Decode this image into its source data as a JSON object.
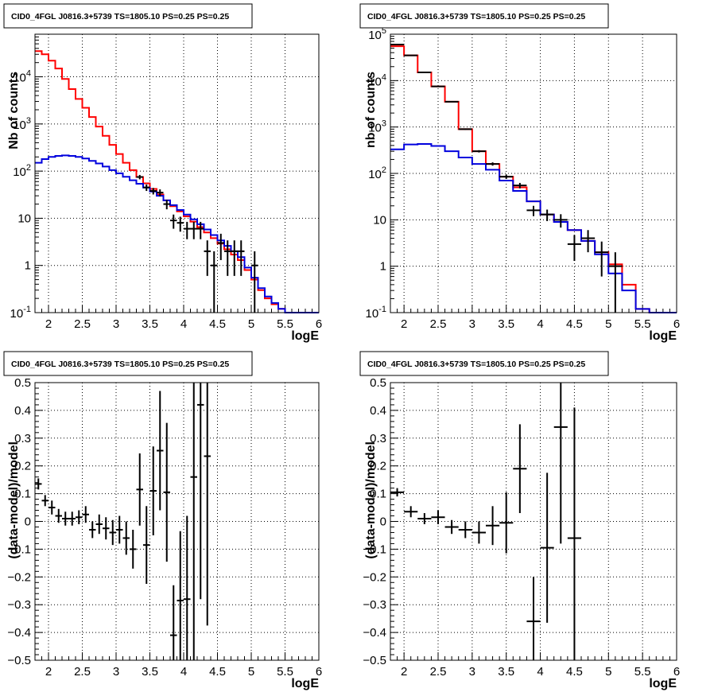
{
  "colors": {
    "data": "#000000",
    "model_total": "#ff0000",
    "model_bkg": "#0000dd",
    "grid": "#000000"
  },
  "chart_data": [
    {
      "type": "step-histogram",
      "title": "CID0_4FGL J0816.3+5739 TS=1805.10 PS=0.25 PS=0.25",
      "xlabel": "logE",
      "ylabel": "Nb of counts",
      "xlim": [
        1.8,
        6.0
      ],
      "ylim": [
        0.1,
        80000
      ],
      "yscale": "log",
      "grid": true,
      "xticks": [
        2,
        2.5,
        3,
        3.5,
        4,
        4.5,
        5,
        5.5,
        6
      ],
      "xtick_labels": [
        "2",
        "2.5",
        "3",
        "3.5",
        "4",
        "4.5",
        "5",
        "5.5",
        "6"
      ],
      "yticks": [
        0.1,
        1,
        10,
        100,
        1000,
        10000
      ],
      "ytick_labels": [
        "10^-1",
        "1",
        "10",
        "10^2",
        "10^3",
        "10^4"
      ],
      "edges": [
        1.8,
        1.9,
        2.0,
        2.1,
        2.2,
        2.3,
        2.4,
        2.5,
        2.6,
        2.7,
        2.8,
        2.9,
        3.0,
        3.1,
        3.2,
        3.3,
        3.4,
        3.5,
        3.6,
        3.7,
        3.8,
        3.9,
        4.0,
        4.1,
        4.2,
        4.3,
        4.4,
        4.5,
        4.6,
        4.7,
        4.8,
        4.9,
        5.0,
        5.1,
        5.2,
        5.3,
        5.4,
        5.5,
        5.6,
        5.7,
        5.8,
        5.9,
        6.0
      ],
      "series": [
        {
          "key": "total",
          "values": [
            35000,
            30000,
            22000,
            15000,
            9000,
            5500,
            3400,
            2200,
            1400,
            880,
            560,
            360,
            230,
            150,
            105,
            75,
            55,
            42,
            32,
            24,
            18,
            14,
            11,
            8.5,
            6.5,
            5,
            3.8,
            2.9,
            2.2,
            1.7,
            1.3,
            0.8,
            0.5,
            0.3,
            0.2,
            0.15,
            0.12,
            0.1,
            0.1,
            0.1,
            0.1,
            0.1
          ]
        },
        {
          "key": "bkg",
          "values": [
            150,
            180,
            200,
            210,
            215,
            210,
            200,
            185,
            165,
            145,
            125,
            105,
            90,
            76,
            64,
            54,
            45,
            37,
            30,
            24,
            19,
            15,
            12,
            9.5,
            7.5,
            5.8,
            4.4,
            3.4,
            2.6,
            2.0,
            1.5,
            0.9,
            0.55,
            0.33,
            0.22,
            0.16,
            0.12,
            0.1,
            0.1,
            0.1,
            0.1,
            0.1
          ]
        }
      ],
      "points": [
        {
          "x": 3.35,
          "y": 75,
          "xe": 0.05,
          "ylo": 8,
          "yhi": 8
        },
        {
          "x": 3.45,
          "y": 45,
          "xe": 0.05,
          "ylo": 7,
          "yhi": 7
        },
        {
          "x": 3.55,
          "y": 38,
          "xe": 0.05,
          "ylo": 6,
          "yhi": 6
        },
        {
          "x": 3.65,
          "y": 35,
          "xe": 0.05,
          "ylo": 6,
          "yhi": 6
        },
        {
          "x": 3.75,
          "y": 20,
          "xe": 0.05,
          "ylo": 4.5,
          "yhi": 4.5
        },
        {
          "x": 3.85,
          "y": 9,
          "xe": 0.05,
          "ylo": 3,
          "yhi": 3
        },
        {
          "x": 3.95,
          "y": 8,
          "xe": 0.05,
          "ylo": 2.8,
          "yhi": 2.8
        },
        {
          "x": 4.05,
          "y": 6,
          "xe": 0.05,
          "ylo": 2.4,
          "yhi": 2.4
        },
        {
          "x": 4.15,
          "y": 6,
          "xe": 0.05,
          "ylo": 2.4,
          "yhi": 2.4
        },
        {
          "x": 4.25,
          "y": 6,
          "xe": 0.05,
          "ylo": 2.4,
          "yhi": 2.4
        },
        {
          "x": 4.35,
          "y": 2,
          "xe": 0.05,
          "ylo": 1.4,
          "yhi": 1.4
        },
        {
          "x": 4.45,
          "y": 1,
          "xe": 0.05,
          "ylo": 0.99,
          "yhi": 1
        },
        {
          "x": 4.55,
          "y": 3,
          "xe": 0.05,
          "ylo": 1.7,
          "yhi": 1.7
        },
        {
          "x": 4.65,
          "y": 2,
          "xe": 0.05,
          "ylo": 1.4,
          "yhi": 1.4
        },
        {
          "x": 4.75,
          "y": 2,
          "xe": 0.05,
          "ylo": 1.4,
          "yhi": 1.4
        },
        {
          "x": 4.85,
          "y": 2,
          "xe": 0.05,
          "ylo": 1.4,
          "yhi": 1.4
        },
        {
          "x": 5.05,
          "y": 1,
          "xe": 0.05,
          "ylo": 0.99,
          "yhi": 1
        }
      ]
    },
    {
      "type": "step-histogram",
      "title": "CID0_4FGL J0816.3+5739 TS=1805.10 PS=0.25 PS=0.25",
      "xlabel": "logE",
      "ylabel": "nb of counts",
      "xlim": [
        1.8,
        6.0
      ],
      "ylim": [
        0.1,
        100000
      ],
      "yscale": "log",
      "grid": true,
      "xticks": [
        2,
        2.5,
        3,
        3.5,
        4,
        4.5,
        5,
        5.5,
        6
      ],
      "xtick_labels": [
        "2",
        "2.5",
        "3",
        "3.5",
        "4",
        "4.5",
        "5",
        "5.5",
        "6"
      ],
      "yticks": [
        0.1,
        1,
        10,
        100,
        1000,
        10000,
        100000
      ],
      "ytick_labels": [
        "10^-1",
        "1",
        "10",
        "10^2",
        "10^3",
        "10^4",
        "10^5"
      ],
      "edges": [
        1.8,
        2.0,
        2.2,
        2.4,
        2.6,
        2.8,
        3.0,
        3.2,
        3.4,
        3.6,
        3.8,
        4.0,
        4.2,
        4.4,
        4.6,
        4.8,
        5.0,
        5.2,
        5.4,
        5.6,
        5.8,
        6.0
      ],
      "series": [
        {
          "key": "total",
          "values": [
            55000,
            35000,
            15000,
            7500,
            3500,
            900,
            300,
            160,
            85,
            50,
            25,
            13,
            9,
            6,
            3.5,
            2,
            1.1,
            0.4,
            0.12,
            0.1,
            0.1
          ]
        },
        {
          "key": "bkg",
          "values": [
            330,
            420,
            430,
            390,
            300,
            220,
            160,
            120,
            70,
            42,
            25,
            13,
            9,
            6,
            3.5,
            1.8,
            0.7,
            0.3,
            0.12,
            0.1,
            0.1
          ]
        }
      ],
      "points": [
        {
          "x": 1.9,
          "y": 60000,
          "xe": 0.1,
          "ylo": 250,
          "yhi": 250
        },
        {
          "x": 2.1,
          "y": 35000,
          "xe": 0.1,
          "ylo": 190,
          "yhi": 190
        },
        {
          "x": 2.3,
          "y": 15000,
          "xe": 0.1,
          "ylo": 120,
          "yhi": 120
        },
        {
          "x": 2.5,
          "y": 7500,
          "xe": 0.1,
          "ylo": 90,
          "yhi": 90
        },
        {
          "x": 2.7,
          "y": 3500,
          "xe": 0.1,
          "ylo": 60,
          "yhi": 60
        },
        {
          "x": 2.9,
          "y": 900,
          "xe": 0.1,
          "ylo": 30,
          "yhi": 30
        },
        {
          "x": 3.1,
          "y": 300,
          "xe": 0.1,
          "ylo": 17,
          "yhi": 17
        },
        {
          "x": 3.3,
          "y": 160,
          "xe": 0.1,
          "ylo": 13,
          "yhi": 13
        },
        {
          "x": 3.5,
          "y": 85,
          "xe": 0.1,
          "ylo": 9,
          "yhi": 9
        },
        {
          "x": 3.7,
          "y": 55,
          "xe": 0.1,
          "ylo": 7.4,
          "yhi": 7.4
        },
        {
          "x": 3.9,
          "y": 16,
          "xe": 0.1,
          "ylo": 4,
          "yhi": 4
        },
        {
          "x": 4.1,
          "y": 13,
          "xe": 0.1,
          "ylo": 3.6,
          "yhi": 3.6
        },
        {
          "x": 4.3,
          "y": 10,
          "xe": 0.1,
          "ylo": 3.2,
          "yhi": 3.2
        },
        {
          "x": 4.5,
          "y": 3,
          "xe": 0.1,
          "ylo": 1.7,
          "yhi": 1.7
        },
        {
          "x": 4.7,
          "y": 4,
          "xe": 0.1,
          "ylo": 2,
          "yhi": 2
        },
        {
          "x": 4.9,
          "y": 2,
          "xe": 0.1,
          "ylo": 1.4,
          "yhi": 1.4
        },
        {
          "x": 5.1,
          "y": 1,
          "xe": 0.1,
          "ylo": 0.99,
          "yhi": 1
        }
      ]
    },
    {
      "type": "scatter",
      "title": "CID0_4FGL J0816.3+5739 TS=1805.10 PS=0.25 PS=0.25",
      "xlabel": "logE",
      "ylabel": "(data-model)/model",
      "xlim": [
        1.8,
        6.0
      ],
      "ylim": [
        -0.5,
        0.5
      ],
      "yscale": "linear",
      "grid": true,
      "xticks": [
        2,
        2.5,
        3,
        3.5,
        4,
        4.5,
        5,
        5.5,
        6
      ],
      "xtick_labels": [
        "2",
        "2.5",
        "3",
        "3.5",
        "4",
        "4.5",
        "5",
        "5.5",
        "6"
      ],
      "yticks": [
        -0.5,
        -0.4,
        -0.3,
        -0.2,
        -0.1,
        0,
        0.1,
        0.2,
        0.3,
        0.4,
        0.5
      ],
      "ytick_labels": [
        "−0.5",
        "−0.4",
        "−0.3",
        "−0.2",
        "−0.1",
        "0",
        "0.1",
        "0.2",
        "0.3",
        "0.4",
        "0.5"
      ],
      "points": [
        {
          "x": 1.85,
          "y": 0.135,
          "xe": 0.05,
          "ylo": 0.02,
          "yhi": 0.02
        },
        {
          "x": 1.95,
          "y": 0.075,
          "xe": 0.05,
          "ylo": 0.02,
          "yhi": 0.02
        },
        {
          "x": 2.05,
          "y": 0.05,
          "xe": 0.05,
          "ylo": 0.025,
          "yhi": 0.025
        },
        {
          "x": 2.15,
          "y": 0.02,
          "xe": 0.05,
          "ylo": 0.025,
          "yhi": 0.025
        },
        {
          "x": 2.25,
          "y": 0.01,
          "xe": 0.05,
          "ylo": 0.025,
          "yhi": 0.025
        },
        {
          "x": 2.35,
          "y": 0.01,
          "xe": 0.05,
          "ylo": 0.025,
          "yhi": 0.025
        },
        {
          "x": 2.45,
          "y": 0.015,
          "xe": 0.05,
          "ylo": 0.025,
          "yhi": 0.025
        },
        {
          "x": 2.55,
          "y": 0.025,
          "xe": 0.05,
          "ylo": 0.03,
          "yhi": 0.03
        },
        {
          "x": 2.65,
          "y": -0.03,
          "xe": 0.05,
          "ylo": 0.03,
          "yhi": 0.03
        },
        {
          "x": 2.75,
          "y": -0.01,
          "xe": 0.05,
          "ylo": 0.035,
          "yhi": 0.035
        },
        {
          "x": 2.85,
          "y": -0.025,
          "xe": 0.05,
          "ylo": 0.04,
          "yhi": 0.04
        },
        {
          "x": 2.95,
          "y": -0.04,
          "xe": 0.05,
          "ylo": 0.045,
          "yhi": 0.045
        },
        {
          "x": 3.05,
          "y": -0.03,
          "xe": 0.05,
          "ylo": 0.05,
          "yhi": 0.05
        },
        {
          "x": 3.15,
          "y": -0.06,
          "xe": 0.05,
          "ylo": 0.06,
          "yhi": 0.06
        },
        {
          "x": 3.25,
          "y": -0.1,
          "xe": 0.05,
          "ylo": 0.07,
          "yhi": 0.07
        },
        {
          "x": 3.35,
          "y": 0.115,
          "xe": 0.05,
          "ylo": 0.13,
          "yhi": 0.13
        },
        {
          "x": 3.45,
          "y": -0.085,
          "xe": 0.05,
          "ylo": 0.14,
          "yhi": 0.14
        },
        {
          "x": 3.55,
          "y": 0.11,
          "xe": 0.05,
          "ylo": 0.16,
          "yhi": 0.16
        },
        {
          "x": 3.65,
          "y": 0.255,
          "xe": 0.05,
          "ylo": 0.215,
          "yhi": 0.215
        },
        {
          "x": 3.75,
          "y": 0.105,
          "xe": 0.05,
          "ylo": 0.25,
          "yhi": 0.25
        },
        {
          "x": 3.85,
          "y": -0.41,
          "xe": 0.05,
          "ylo": 0.15,
          "yhi": 0.18
        },
        {
          "x": 3.95,
          "y": -0.285,
          "xe": 0.05,
          "ylo": 0.25,
          "yhi": 0.25
        },
        {
          "x": 4.05,
          "y": -0.28,
          "xe": 0.05,
          "ylo": 0.3,
          "yhi": 0.3
        },
        {
          "x": 4.15,
          "y": 0.16,
          "xe": 0.05,
          "ylo": 0.7,
          "yhi": 0.7
        },
        {
          "x": 4.25,
          "y": 0.42,
          "xe": 0.05,
          "ylo": 0.7,
          "yhi": 0.7
        },
        {
          "x": 4.35,
          "y": 0.235,
          "xe": 0.05,
          "ylo": 0.61,
          "yhi": 0.61
        }
      ]
    },
    {
      "type": "scatter",
      "title": "CID0_4FGL J0816.3+5739 TS=1805.10 PS=0.25 PS=0.25",
      "xlabel": "logE",
      "ylabel": "(data-model)/model",
      "xlim": [
        1.8,
        6.0
      ],
      "ylim": [
        -0.5,
        0.5
      ],
      "yscale": "linear",
      "grid": true,
      "xticks": [
        2,
        2.5,
        3,
        3.5,
        4,
        4.5,
        5,
        5.5,
        6
      ],
      "xtick_labels": [
        "2",
        "2.5",
        "3",
        "3.5",
        "4",
        "4.5",
        "5",
        "5.5",
        "6"
      ],
      "yticks": [
        -0.5,
        -0.4,
        -0.3,
        -0.2,
        -0.1,
        0,
        0.1,
        0.2,
        0.3,
        0.4,
        0.5
      ],
      "ytick_labels": [
        "−0.5",
        "−0.4",
        "−0.3",
        "−0.2",
        "−0.1",
        "0",
        "0.1",
        "0.2",
        "0.3",
        "0.4",
        "0.5"
      ],
      "points": [
        {
          "x": 1.9,
          "y": 0.105,
          "xe": 0.1,
          "ylo": 0.015,
          "yhi": 0.015
        },
        {
          "x": 2.1,
          "y": 0.035,
          "xe": 0.1,
          "ylo": 0.02,
          "yhi": 0.02
        },
        {
          "x": 2.3,
          "y": 0.01,
          "xe": 0.1,
          "ylo": 0.02,
          "yhi": 0.02
        },
        {
          "x": 2.5,
          "y": 0.015,
          "xe": 0.1,
          "ylo": 0.025,
          "yhi": 0.025
        },
        {
          "x": 2.7,
          "y": -0.02,
          "xe": 0.1,
          "ylo": 0.025,
          "yhi": 0.025
        },
        {
          "x": 2.9,
          "y": -0.03,
          "xe": 0.1,
          "ylo": 0.03,
          "yhi": 0.03
        },
        {
          "x": 3.1,
          "y": -0.04,
          "xe": 0.1,
          "ylo": 0.04,
          "yhi": 0.04
        },
        {
          "x": 3.3,
          "y": -0.015,
          "xe": 0.1,
          "ylo": 0.07,
          "yhi": 0.07
        },
        {
          "x": 3.5,
          "y": -0.005,
          "xe": 0.1,
          "ylo": 0.11,
          "yhi": 0.11
        },
        {
          "x": 3.7,
          "y": 0.19,
          "xe": 0.1,
          "ylo": 0.16,
          "yhi": 0.16
        },
        {
          "x": 3.9,
          "y": -0.36,
          "xe": 0.1,
          "ylo": 0.17,
          "yhi": 0.16
        },
        {
          "x": 4.1,
          "y": -0.095,
          "xe": 0.1,
          "ylo": 0.27,
          "yhi": 0.27
        },
        {
          "x": 4.3,
          "y": 0.34,
          "xe": 0.1,
          "ylo": 0.42,
          "yhi": 0.42
        },
        {
          "x": 4.5,
          "y": -0.06,
          "xe": 0.1,
          "ylo": 0.5,
          "yhi": 0.47
        }
      ]
    }
  ]
}
